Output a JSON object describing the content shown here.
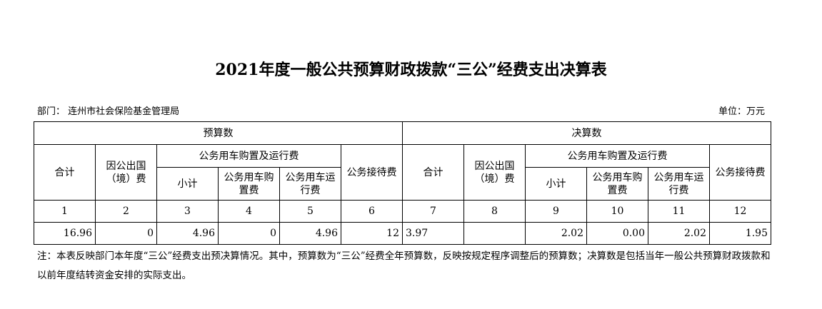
{
  "title": "2021年度一般公共预算财政拨款“三公”经费支出决算表",
  "department": "部门：  连州市社会保险基金管理局",
  "unit": "单位：万元",
  "headers": {
    "budget": "预算数",
    "final": "决算数",
    "total": "合计",
    "abroad": "因公出国（境）费",
    "car": "公务用车购置及运行费",
    "subtotal": "小计",
    "car_buy": "公务用车购置费",
    "car_run": "公务用车运行费",
    "reception": "公务接待费"
  },
  "col_numbers": [
    "1",
    "2",
    "3",
    "4",
    "5",
    "6",
    "7",
    "8",
    "9",
    "10",
    "11",
    "12"
  ],
  "values": [
    "16.96",
    "0",
    "4.96",
    "0",
    "4.96",
    "12",
    "3.97",
    "",
    "2.02",
    "0.00",
    "2.02",
    "1.95"
  ],
  "note": "注：本表反映部门本年度“三公”经费支出预决算情况。其中，预算数为“三公”经费全年预算数，反映按规定程序调整后的预算数；决算数是包括当年一般公共预算财政拨款和以前年度结转资金安排的实际支出。"
}
